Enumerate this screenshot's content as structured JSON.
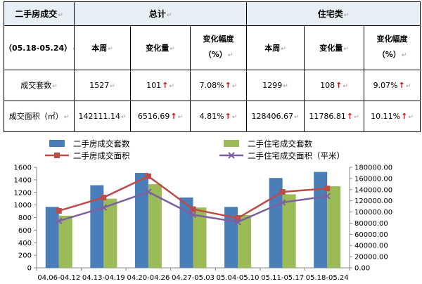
{
  "table": {
    "header": {
      "title": "二手房成交",
      "total": "总计",
      "residential": "住宅类"
    },
    "period": "（05.18-05.24）",
    "columns": {
      "this_week": "本周",
      "change": "变化量",
      "change_pct_line1": "变化幅度",
      "change_pct_line2": "（%）"
    },
    "rows": [
      {
        "label": "成交套数",
        "total_week": "1527",
        "total_change": "101",
        "total_pct": "7.08%",
        "res_week": "1299",
        "res_change": "108",
        "res_pct": "9.07%"
      },
      {
        "label": "成交面积（㎡）",
        "total_week": "142111.14",
        "total_change": "6516.69",
        "total_pct": "4.81%",
        "res_week": "128406.67",
        "res_change": "11786.81",
        "res_pct": "10.11%"
      }
    ],
    "up_arrow": "↑",
    "cell_marker": "↵"
  },
  "chart_data": {
    "type": "bar",
    "categories": [
      "04.06-04.12",
      "04.13-04.19",
      "04.20-04.26",
      "04.27-05.03",
      "05.04-05.10",
      "05.11-05.17",
      "05.18-05.24"
    ],
    "bar_series": [
      {
        "name": "二手房成交套数",
        "color": "#4a7ebb",
        "values": [
          970,
          1315,
          1510,
          1120,
          970,
          1430,
          1527
        ]
      },
      {
        "name": "二手住宅成交套数",
        "color": "#9bbb59",
        "values": [
          830,
          1100,
          1330,
          960,
          840,
          1170,
          1299
        ]
      }
    ],
    "line_series": [
      {
        "name": "二手房成交面积",
        "color": "#be4b48",
        "marker": "square",
        "values": [
          102000,
          126000,
          164000,
          105000,
          89000,
          136000,
          142111.14
        ]
      },
      {
        "name": "二手住宅成交面积（平米）",
        "color": "#7d60a0",
        "marker": "x",
        "values": [
          84000,
          108000,
          136000,
          95000,
          82000,
          117000,
          128406.67
        ]
      }
    ],
    "y_left": {
      "min": 0,
      "max": 1600,
      "step": 200,
      "ticks": [
        "0",
        "200",
        "400",
        "600",
        "800",
        "1000",
        "1200",
        "1400",
        "1600"
      ]
    },
    "y_right": {
      "min": 0,
      "max": 180000,
      "step": 20000,
      "ticks": [
        "0.00",
        "20000.00",
        "40000.00",
        "60000.00",
        "80000.00",
        "100000.00",
        "120000.00",
        "140000.00",
        "160000.00",
        "180000.00"
      ]
    },
    "legend_position": "top"
  }
}
